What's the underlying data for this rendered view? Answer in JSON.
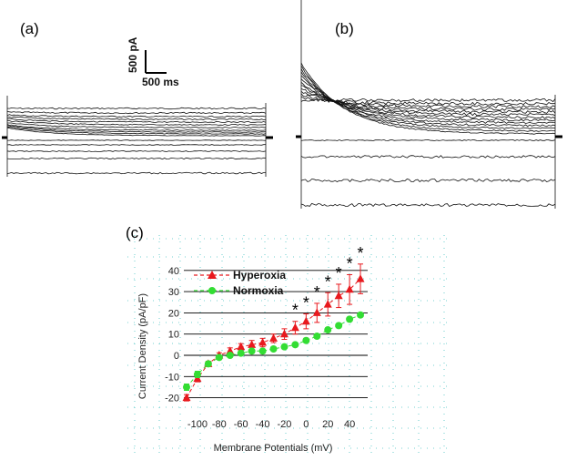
{
  "panels": {
    "a": "(a)",
    "b": "(b)",
    "c": "(c)"
  },
  "scale_bar": {
    "current": "500 pA",
    "time": "500 ms"
  },
  "chart_data": {
    "type": "scatter",
    "title": "",
    "xlabel": "Membrane Potentials (mV)",
    "ylabel": "Current Density (pA/pF)",
    "xlim": [
      -110,
      55
    ],
    "ylim": [
      -25,
      45
    ],
    "xticks": [
      -100,
      -80,
      -60,
      -40,
      -20,
      0,
      20,
      40
    ],
    "yticks": [
      -20,
      -10,
      0,
      10,
      20,
      30,
      40
    ],
    "x": [
      -110,
      -100,
      -90,
      -80,
      -70,
      -60,
      -50,
      -40,
      -30,
      -20,
      -10,
      0,
      10,
      20,
      30,
      40,
      50
    ],
    "legend": "top-left",
    "series": [
      {
        "name": "Hyperoxia",
        "color": "#e8191e",
        "marker": "triangle",
        "linestyle": "dashed",
        "values": [
          -20,
          -11,
          -4,
          0,
          2,
          4,
          5,
          6,
          8,
          10,
          13,
          16,
          20,
          24,
          28,
          31,
          36
        ],
        "errors": [
          1.5,
          1.5,
          1.2,
          1.2,
          1.5,
          1.5,
          2,
          2,
          2,
          2.5,
          3,
          3.5,
          4.5,
          5.5,
          5.5,
          7,
          7
        ]
      },
      {
        "name": "Normoxia",
        "color": "#33dd33",
        "marker": "circle",
        "linestyle": "dashed",
        "values": [
          -15,
          -9,
          -4,
          -1,
          0,
          1,
          2,
          2,
          3,
          4,
          5,
          7,
          9,
          12,
          14,
          17,
          19
        ],
        "errors": [
          1.5,
          1.5,
          1,
          1,
          0.8,
          0.8,
          0.8,
          0.8,
          0.8,
          0.8,
          0.8,
          1,
          1,
          1,
          1,
          1,
          1
        ]
      }
    ],
    "significance_marks": {
      "label": "*",
      "x": [
        -10,
        0,
        10,
        20,
        30,
        40,
        50
      ]
    }
  }
}
